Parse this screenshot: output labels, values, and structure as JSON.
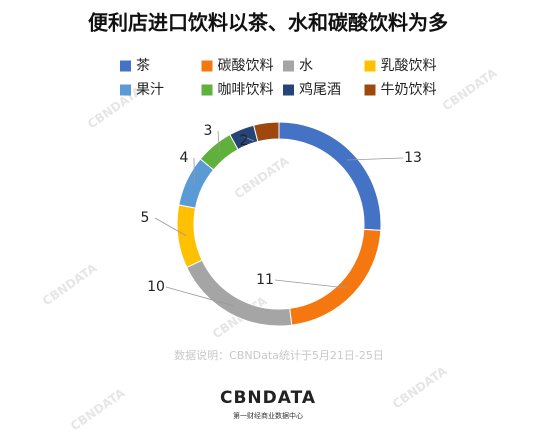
{
  "chart_data": {
    "type": "donut",
    "title": "便利店进口饮料以茶、水和碳酸饮料为多",
    "categories": [
      "茶",
      "碳酸饮料",
      "水",
      "乳酸饮料",
      "果汁",
      "咖啡饮料",
      "鸡尾酒",
      "牛奶饮料"
    ],
    "values": [
      13,
      11,
      10,
      5,
      4,
      3,
      2,
      2
    ],
    "colors": [
      "#4472c4",
      "#f5770f",
      "#a5a5a5",
      "#ffc000",
      "#5b9bd5",
      "#5fb13b",
      "#264478",
      "#9e480e"
    ],
    "note": "数据说明：CBNData统计于5月21日-25日",
    "logo": "CBNDATA",
    "logo_subtitle": "第一财经商业数据中心",
    "watermark": "CBNDATA"
  }
}
